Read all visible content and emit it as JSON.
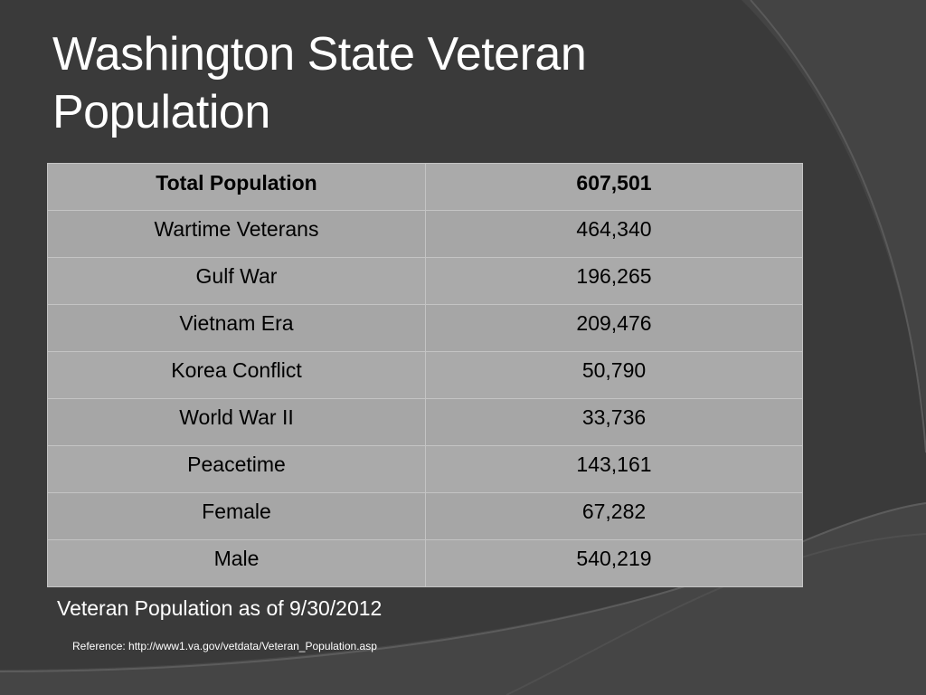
{
  "slide": {
    "title": "Washington State Veteran Population",
    "caption": "Veteran Population as of 9/30/2012",
    "reference": "Reference:  http://www1.va.gov/vetdata/Veteran_Population.asp"
  },
  "table": {
    "rows": [
      {
        "label": "Total Population",
        "value": "607,501",
        "bold": true
      },
      {
        "label": "Wartime Veterans",
        "value": "464,340"
      },
      {
        "label": "Gulf War",
        "value": "196,265"
      },
      {
        "label": "Vietnam Era",
        "value": "209,476"
      },
      {
        "label": "Korea Conflict",
        "value": "50,790"
      },
      {
        "label": "World War II",
        "value": "33,736"
      },
      {
        "label": "Peacetime",
        "value": "143,161"
      },
      {
        "label": "Female",
        "value": "67,282"
      },
      {
        "label": "Male",
        "value": "540,219"
      }
    ]
  },
  "colors": {
    "background": "#3a3a3a",
    "table_fill": "#aaaaaa",
    "text": "#ffffff"
  }
}
